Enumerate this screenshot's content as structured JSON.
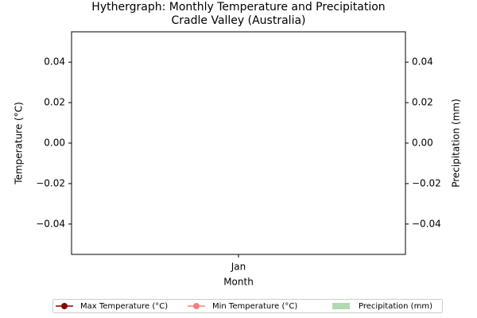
{
  "chart_data": {
    "type": "line",
    "title": "Hythergraph: Monthly Temperature and Precipitation",
    "subtitle": "Cradle Valley (Australia)",
    "x_label": "Month",
    "y_label": "Temperature (°C)",
    "y2_label": "Precipitation (mm)",
    "y_color": "red",
    "y2_color": "green",
    "categories": [
      "Jan"
    ],
    "series": [
      {
        "name": "Max Temperature (°C)",
        "color": "darkred",
        "values": [
          null
        ]
      },
      {
        "name": "Min Temperature (°C)",
        "color": "lightcoral",
        "values": [
          null
        ]
      },
      {
        "name": "Precipitation (mm)",
        "color": "green",
        "type": "bar",
        "axis": "y2",
        "values": [
          null
        ]
      }
    ],
    "ylim": [
      -0.055,
      0.055
    ],
    "yticks": [
      {
        "value": -0.04,
        "label": "−0.04"
      },
      {
        "value": -0.02,
        "label": "−0.02"
      },
      {
        "value": 0,
        "label": "0.00"
      },
      0.02,
      0.04
    ],
    "y2lim": [
      -0.055,
      0.055
    ],
    "y2ticks": [
      {
        "value": -0.04,
        "label": "−0.04"
      },
      {
        "value": -0.02,
        "label": "−0.02"
      },
      {
        "value": 0,
        "label": "0.00"
      },
      0.02,
      0.04
    ],
    "legend": "lower center"
  }
}
